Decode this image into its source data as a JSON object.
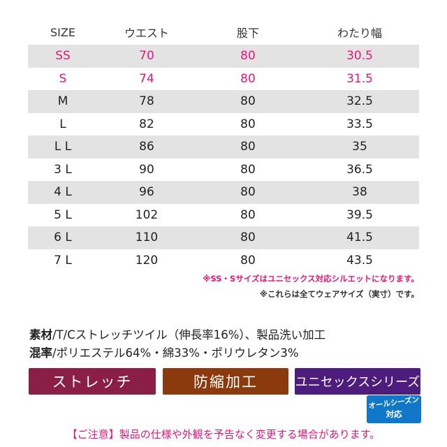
{
  "table": {
    "headers": [
      "SIZE",
      "ウエスト",
      "股下",
      "わたり幅"
    ],
    "rows": [
      [
        "SS",
        "70",
        "80",
        "30.5"
      ],
      [
        "S",
        "74",
        "80",
        "31.5"
      ],
      [
        "M",
        "78",
        "80",
        "32.5"
      ],
      [
        "L",
        "82",
        "80",
        "33.5"
      ],
      [
        "L L",
        "86",
        "80",
        "35"
      ],
      [
        "3 L",
        "90",
        "80",
        "36.5"
      ],
      [
        "4 L",
        "96",
        "80",
        "38"
      ],
      [
        "5 L",
        "102",
        "80",
        "39.5"
      ],
      [
        "6 L",
        "110",
        "80",
        "41.5"
      ],
      [
        "7 L",
        "120",
        "80",
        "43.5"
      ]
    ]
  },
  "notes": {
    "unisex_note": "※SS・Sサイズはユニセックス対応シルエットになります。",
    "size_note": "※これらは全てウェアサイズ（実寸）です。"
  },
  "specs": {
    "material_label": "素材",
    "material_value": "/T/Cストレッチツイル（伸長率16%）、製品洗い加工",
    "blend_label": "混率",
    "blend_value": "/ポリエステル64%・綿33%・ポリウレタン3%"
  },
  "badges": {
    "stretch": "ストレッチ",
    "shrink_proof": "防縮加工",
    "unisex_series": "ユニセックスシリーズ",
    "season_top": "オールシーズン",
    "season_bottom": "対応"
  },
  "warning": "【ご注意】製品の仕様や外観を予告なく変更する場合があります。",
  "colors": {
    "accent_pink": "#e0187a",
    "stretch_badge": "#8a1e44",
    "shrink_badge": "#8a3a0c",
    "unisex_badge": "#4d1c7c",
    "season_badge": "#1177c9",
    "row_shade": "#e3e3e3"
  }
}
